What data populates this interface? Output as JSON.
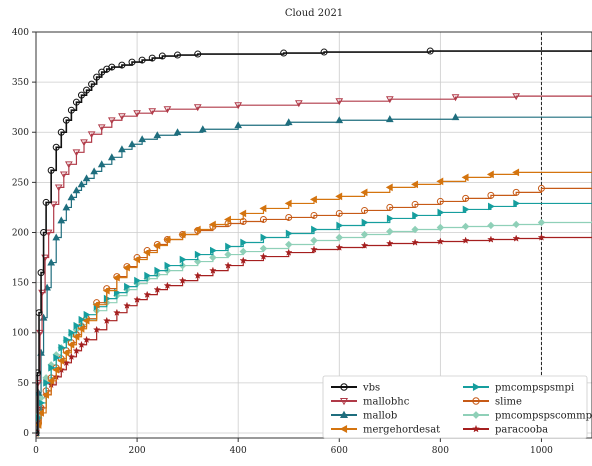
{
  "chart_data": {
    "type": "line",
    "title": "Cloud 2021",
    "xlabel": "",
    "ylabel": "",
    "xlim": [
      0,
      1100
    ],
    "ylim": [
      -5,
      400
    ],
    "xticks": [
      0,
      200,
      400,
      600,
      800,
      1000
    ],
    "yticks": [
      0,
      50,
      100,
      150,
      200,
      250,
      300,
      350,
      400
    ],
    "grid": true,
    "legend_position": "lower-right",
    "timeout_line_x": 1000,
    "series": [
      {
        "name": "vbs",
        "color": "#111111",
        "marker": "circle",
        "x": [
          0,
          3,
          6,
          10,
          15,
          20,
          30,
          40,
          50,
          60,
          70,
          80,
          90,
          100,
          110,
          120,
          130,
          140,
          150,
          170,
          190,
          210,
          230,
          250,
          280,
          320,
          490,
          570,
          780,
          1100
        ],
        "y": [
          0,
          60,
          120,
          160,
          200,
          230,
          262,
          285,
          300,
          312,
          322,
          330,
          337,
          342,
          348,
          355,
          360,
          363,
          365,
          367,
          370,
          372,
          374,
          376,
          377,
          378,
          379,
          380,
          381,
          381
        ]
      },
      {
        "name": "mallobhc",
        "color": "#b03a48",
        "marker": "triangle-down",
        "x": [
          0,
          4,
          8,
          12,
          18,
          25,
          35,
          45,
          55,
          65,
          80,
          95,
          110,
          130,
          150,
          170,
          200,
          230,
          260,
          320,
          400,
          520,
          600,
          700,
          830,
          950,
          1100
        ],
        "y": [
          0,
          50,
          100,
          140,
          175,
          200,
          228,
          245,
          258,
          268,
          280,
          290,
          298,
          305,
          312,
          316,
          319,
          321,
          323,
          325,
          327,
          329,
          331,
          333,
          335,
          336,
          337
        ]
      },
      {
        "name": "mallob",
        "color": "#1f6e7e",
        "marker": "triangle-up",
        "x": [
          0,
          5,
          10,
          15,
          22,
          30,
          40,
          50,
          60,
          70,
          80,
          90,
          100,
          115,
          130,
          150,
          170,
          190,
          210,
          240,
          280,
          330,
          400,
          500,
          600,
          700,
          830,
          1100
        ],
        "y": [
          0,
          40,
          80,
          115,
          145,
          170,
          195,
          212,
          225,
          235,
          242,
          248,
          254,
          261,
          268,
          275,
          283,
          288,
          293,
          297,
          300,
          303,
          307,
          310,
          312,
          313,
          315,
          316
        ]
      },
      {
        "name": "mergehordesat",
        "color": "#d4740f",
        "marker": "triangle-left",
        "x": [
          0,
          5,
          10,
          20,
          30,
          40,
          50,
          60,
          70,
          80,
          90,
          100,
          120,
          140,
          160,
          180,
          200,
          220,
          240,
          260,
          290,
          320,
          350,
          380,
          410,
          450,
          500,
          550,
          600,
          650,
          700,
          750,
          800,
          850,
          900,
          950,
          1100
        ],
        "y": [
          0,
          8,
          20,
          38,
          52,
          63,
          72,
          80,
          88,
          96,
          104,
          112,
          128,
          142,
          155,
          165,
          173,
          180,
          187,
          193,
          198,
          203,
          208,
          213,
          219,
          224,
          229,
          233,
          236,
          240,
          245,
          248,
          251,
          255,
          258,
          260,
          260
        ]
      },
      {
        "name": "pmcompspsmpi",
        "color": "#169e9e",
        "marker": "triangle-right",
        "x": [
          0,
          5,
          10,
          20,
          30,
          40,
          50,
          60,
          70,
          80,
          90,
          100,
          120,
          140,
          160,
          180,
          200,
          220,
          240,
          260,
          290,
          320,
          350,
          380,
          410,
          450,
          500,
          550,
          600,
          650,
          700,
          750,
          800,
          850,
          900,
          950,
          1100
        ],
        "y": [
          0,
          15,
          30,
          50,
          65,
          75,
          85,
          93,
          100,
          107,
          113,
          118,
          126,
          134,
          140,
          146,
          152,
          157,
          162,
          167,
          173,
          178,
          182,
          186,
          190,
          195,
          199,
          203,
          207,
          210,
          214,
          217,
          220,
          223,
          226,
          229,
          229
        ]
      },
      {
        "name": "slime",
        "color": "#c65a17",
        "marker": "circle",
        "x": [
          0,
          5,
          10,
          20,
          30,
          40,
          50,
          60,
          70,
          80,
          90,
          100,
          120,
          140,
          160,
          180,
          200,
          220,
          240,
          260,
          290,
          320,
          350,
          380,
          410,
          450,
          500,
          550,
          600,
          650,
          700,
          750,
          800,
          850,
          900,
          950,
          1000,
          1100
        ],
        "y": [
          0,
          10,
          25,
          42,
          55,
          65,
          74,
          82,
          90,
          98,
          106,
          114,
          130,
          144,
          156,
          166,
          175,
          182,
          188,
          193,
          198,
          202,
          206,
          209,
          211,
          213,
          215,
          217,
          219,
          222,
          225,
          228,
          231,
          234,
          237,
          240,
          244,
          245
        ]
      },
      {
        "name": "pmcompspscommpi",
        "color": "#8fd0b8",
        "marker": "diamond",
        "x": [
          0,
          5,
          10,
          20,
          30,
          40,
          50,
          60,
          70,
          80,
          90,
          100,
          120,
          140,
          160,
          180,
          200,
          220,
          240,
          260,
          290,
          320,
          350,
          380,
          410,
          450,
          500,
          550,
          600,
          650,
          700,
          750,
          800,
          850,
          900,
          950,
          1000,
          1100
        ],
        "y": [
          0,
          18,
          35,
          55,
          68,
          78,
          85,
          92,
          98,
          103,
          108,
          113,
          122,
          130,
          137,
          143,
          149,
          154,
          158,
          162,
          167,
          171,
          175,
          178,
          181,
          184,
          188,
          192,
          195,
          198,
          201,
          203,
          205,
          206,
          207,
          208,
          210,
          211
        ]
      },
      {
        "name": "paracooba",
        "color": "#a51f1f",
        "marker": "star",
        "x": [
          0,
          5,
          10,
          20,
          30,
          40,
          50,
          60,
          70,
          80,
          90,
          100,
          120,
          140,
          160,
          180,
          200,
          220,
          240,
          260,
          290,
          320,
          350,
          380,
          410,
          450,
          500,
          550,
          600,
          650,
          700,
          750,
          800,
          850,
          900,
          950,
          1000,
          1100
        ],
        "y": [
          0,
          12,
          25,
          38,
          48,
          56,
          63,
          70,
          76,
          82,
          88,
          93,
          103,
          112,
          120,
          127,
          133,
          138,
          143,
          147,
          152,
          157,
          162,
          167,
          172,
          176,
          180,
          183,
          185,
          187,
          189,
          190,
          191,
          192,
          193,
          194,
          195,
          196
        ]
      }
    ]
  }
}
